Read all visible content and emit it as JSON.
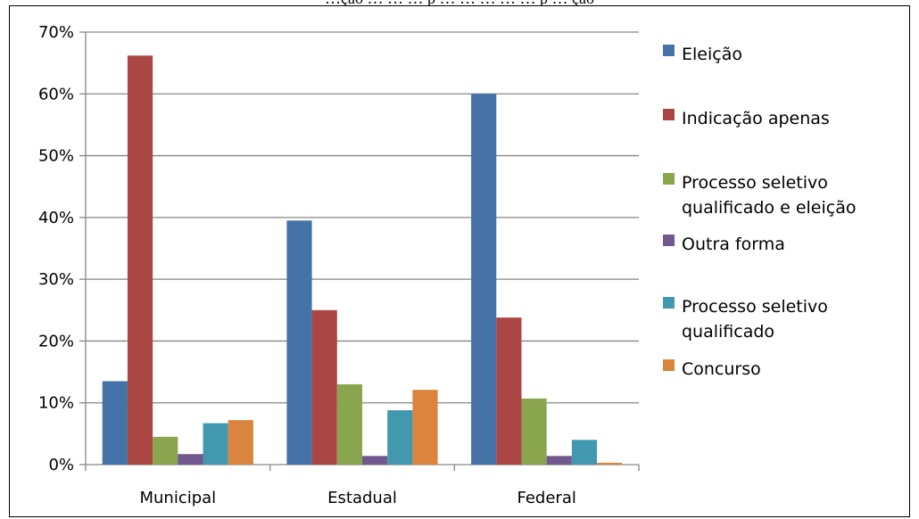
{
  "caption": "…ção … … … p … … … … … p … ção",
  "chart_data": {
    "type": "bar",
    "title": "",
    "xlabel": "",
    "ylabel": "",
    "categories": [
      "Municipal",
      "Estadual",
      "Federal"
    ],
    "ylim": [
      0,
      70
    ],
    "yticks": [
      "0%",
      "10%",
      "20%",
      "30%",
      "40%",
      "50%",
      "60%",
      "70%"
    ],
    "ytick_values": [
      0,
      10,
      20,
      30,
      40,
      50,
      60,
      70
    ],
    "grid": true,
    "legend_position": "right",
    "series": [
      {
        "name": "Eleição",
        "color": "#4572A7",
        "values": [
          13.5,
          39.5,
          60
        ]
      },
      {
        "name": "Indicação apenas",
        "color": "#AA4643",
        "values": [
          66.2,
          25,
          23.8
        ]
      },
      {
        "name": "Processo seletivo qualificado e eleição",
        "legend_lines": [
          "Processo seletivo",
          "qualificado e eleição"
        ],
        "color": "#89A54E",
        "values": [
          4.5,
          13,
          10.7
        ]
      },
      {
        "name": "Outra forma",
        "color": "#71588F",
        "values": [
          1.7,
          1.4,
          1.4
        ]
      },
      {
        "name": "Processo seletivo qualificado",
        "legend_lines": [
          "Processo seletivo",
          "qualificado"
        ],
        "color": "#4198AF",
        "values": [
          6.7,
          8.8,
          4
        ]
      },
      {
        "name": "Concurso",
        "color": "#DB843D",
        "values": [
          7.2,
          12.1,
          0.3
        ]
      }
    ]
  }
}
